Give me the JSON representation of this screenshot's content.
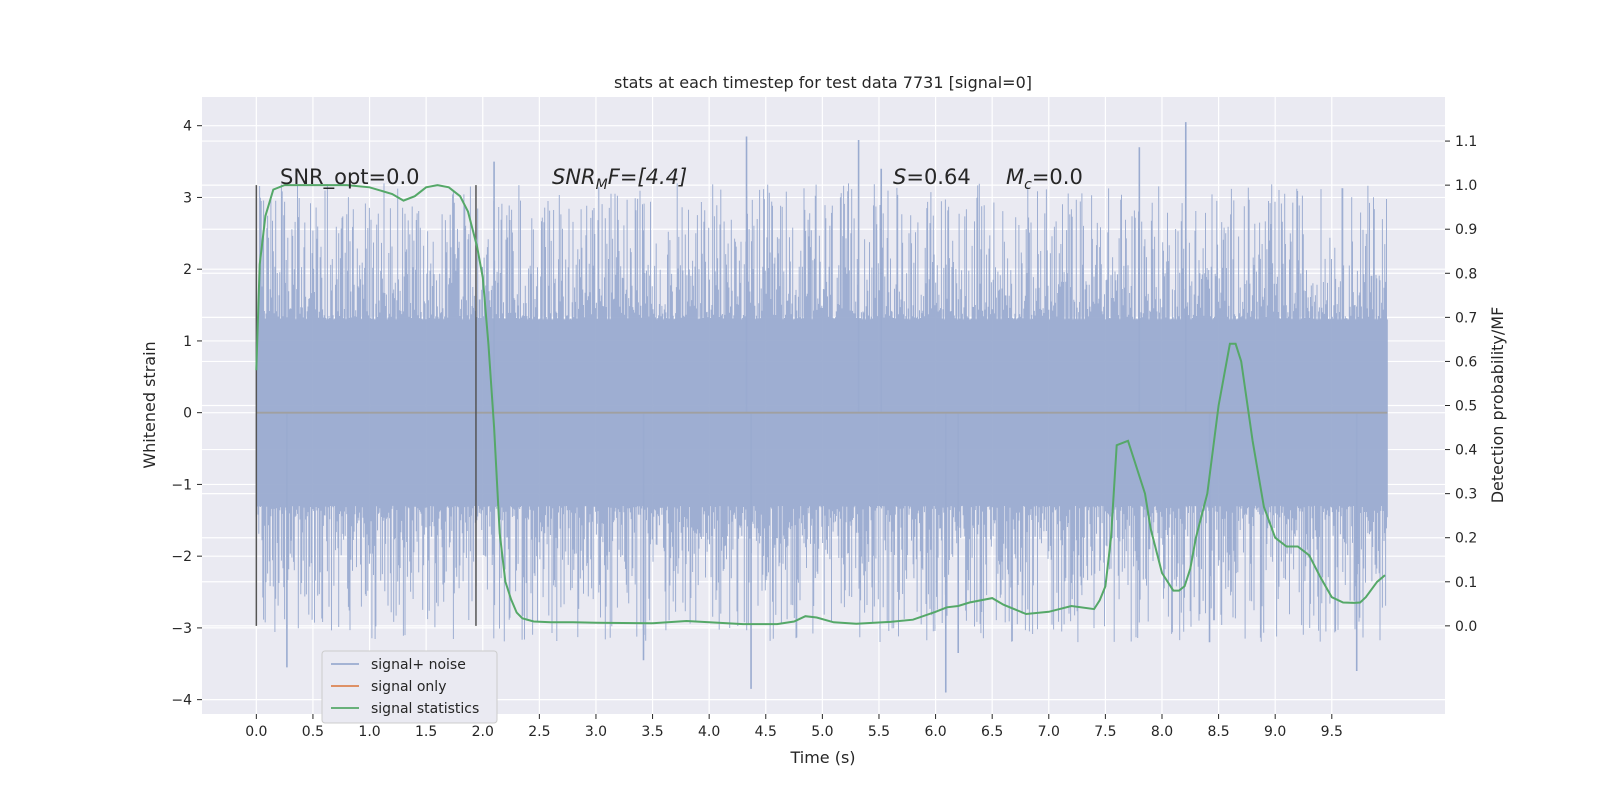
{
  "chart_data": {
    "type": "line",
    "title": "stats at each timestep for test data 7731 [signal=0]",
    "xlabel": "Time (s)",
    "ylabel_left": "Whitened strain",
    "ylabel_right": "Detection probability/MF",
    "xlim": [
      -0.48,
      10.5
    ],
    "ylim_left": [
      -4.2,
      4.4
    ],
    "ylim_right": [
      -0.2,
      1.2
    ],
    "xticks": [
      "0.0",
      "0.5",
      "1.0",
      "1.5",
      "2.0",
      "2.5",
      "3.0",
      "3.5",
      "4.0",
      "4.5",
      "5.0",
      "5.5",
      "6.0",
      "6.5",
      "7.0",
      "7.5",
      "8.0",
      "8.5",
      "9.0",
      "9.5"
    ],
    "yticks_left": [
      "4",
      "3",
      "2",
      "1",
      "0",
      "−1",
      "−2",
      "−3",
      "−4"
    ],
    "yticks_right": [
      "1.1",
      "1.0",
      "0.9",
      "0.8",
      "0.7",
      "0.6",
      "0.5",
      "0.4",
      "0.3",
      "0.2",
      "0.1",
      "0.0"
    ],
    "grid": true,
    "legend_position": "lower-left",
    "annotations": {
      "snr_opt": "SNR_opt=0.0",
      "snr_mf_main": "SNR",
      "snr_mf_sub": "M",
      "snr_mf_rest": "F=[4.4]",
      "s_main": "S",
      "s_rest": "=0.64",
      "mc_main": "M",
      "mc_sub": "c",
      "mc_rest": "=0.0"
    },
    "window_markers_x": [
      0.0,
      1.94
    ],
    "series": [
      {
        "name": "signal+ noise",
        "color": "#9aabd0",
        "x_range": [
          0.0,
          9.99
        ],
        "band_typical": [
          -1.3,
          1.3
        ],
        "envelope_range": [
          -3.6,
          4.05
        ],
        "spikes": [
          {
            "x": 4.33,
            "y": 3.85
          },
          {
            "x": 8.21,
            "y": 4.05
          },
          {
            "x": 7.8,
            "y": 3.7
          },
          {
            "x": 5.32,
            "y": 3.8
          },
          {
            "x": 5.52,
            "y": 3.4
          },
          {
            "x": 2.1,
            "y": 3.5
          },
          {
            "x": 0.27,
            "y": -3.55
          },
          {
            "x": 3.42,
            "y": -3.45
          },
          {
            "x": 4.37,
            "y": -3.85
          },
          {
            "x": 6.09,
            "y": -3.9
          },
          {
            "x": 6.2,
            "y": -3.35
          },
          {
            "x": 9.72,
            "y": -3.6
          },
          {
            "x": 8.42,
            "y": -3.2
          }
        ]
      },
      {
        "name": "signal only",
        "color": "#dd8452",
        "x": [
          0.0,
          9.99
        ],
        "y": [
          0.0,
          0.0
        ]
      },
      {
        "name": "signal statistics",
        "color": "#55a868",
        "axis": "right",
        "x": [
          0.0,
          0.03,
          0.08,
          0.15,
          0.25,
          0.4,
          0.6,
          0.8,
          1.0,
          1.2,
          1.3,
          1.4,
          1.5,
          1.6,
          1.7,
          1.8,
          1.87,
          1.95,
          2.0,
          2.05,
          2.1,
          2.15,
          2.2,
          2.25,
          2.3,
          2.35,
          2.45,
          2.6,
          2.8,
          3.0,
          3.5,
          3.8,
          4.0,
          4.3,
          4.6,
          4.75,
          4.85,
          4.95,
          5.1,
          5.3,
          5.6,
          5.8,
          6.0,
          6.1,
          6.2,
          6.3,
          6.5,
          6.6,
          6.8,
          7.0,
          7.2,
          7.4,
          7.45,
          7.5,
          7.55,
          7.6,
          7.7,
          7.75,
          7.85,
          7.9,
          8.0,
          8.1,
          8.15,
          8.2,
          8.25,
          8.3,
          8.4,
          8.5,
          8.6,
          8.65,
          8.7,
          8.8,
          8.9,
          9.0,
          9.1,
          9.2,
          9.3,
          9.4,
          9.5,
          9.6,
          9.7,
          9.75,
          9.8,
          9.9,
          9.97
        ],
        "y": [
          0.58,
          0.82,
          0.93,
          0.99,
          1.0,
          1.0,
          1.0,
          1.0,
          0.995,
          0.98,
          0.965,
          0.975,
          0.995,
          1.0,
          0.995,
          0.975,
          0.94,
          0.86,
          0.79,
          0.64,
          0.45,
          0.21,
          0.1,
          0.06,
          0.03,
          0.017,
          0.01,
          0.008,
          0.008,
          0.007,
          0.006,
          0.011,
          0.008,
          0.004,
          0.004,
          0.01,
          0.022,
          0.019,
          0.008,
          0.005,
          0.009,
          0.014,
          0.032,
          0.042,
          0.045,
          0.053,
          0.063,
          0.048,
          0.027,
          0.032,
          0.045,
          0.038,
          0.058,
          0.09,
          0.2,
          0.41,
          0.42,
          0.38,
          0.3,
          0.22,
          0.12,
          0.08,
          0.08,
          0.09,
          0.13,
          0.2,
          0.3,
          0.5,
          0.64,
          0.64,
          0.6,
          0.42,
          0.27,
          0.2,
          0.18,
          0.18,
          0.16,
          0.11,
          0.065,
          0.053,
          0.052,
          0.053,
          0.065,
          0.1,
          0.115
        ]
      }
    ]
  }
}
